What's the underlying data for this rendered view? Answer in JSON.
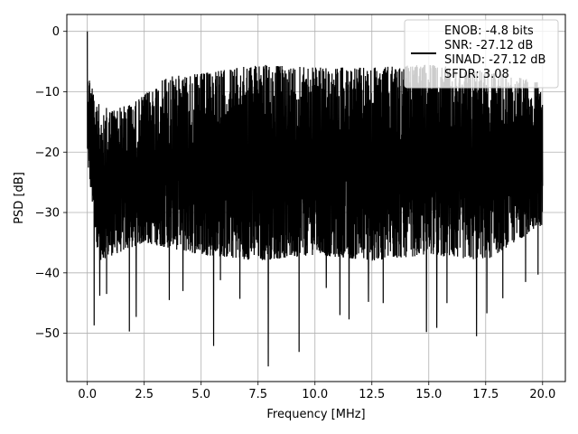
{
  "chart_data": {
    "type": "line",
    "xlabel": "Frequency [MHz]",
    "ylabel": "PSD [dB]",
    "xlim": [
      -0.9,
      21.0
    ],
    "ylim": [
      -58.0,
      2.8
    ],
    "xticks": [
      0.0,
      2.5,
      5.0,
      7.5,
      10.0,
      12.5,
      15.0,
      17.5,
      20.0
    ],
    "xtick_labels": [
      "0.0",
      "2.5",
      "5.0",
      "7.5",
      "10.0",
      "12.5",
      "15.0",
      "17.5",
      "20.0"
    ],
    "yticks": [
      0,
      -10,
      -20,
      -30,
      -40,
      -50
    ],
    "ytick_labels": [
      "0",
      "−10",
      "−20",
      "−30",
      "−40",
      "−50"
    ],
    "grid": true,
    "legend_location": "upper right",
    "legend": {
      "lines": [
        "ENOB: -4.8 bits",
        "SNR: -27.12 dB",
        "SINAD: -27.12 dB",
        "SFDR: 3.08"
      ]
    },
    "series": [
      {
        "color": "#000000",
        "x_start": 0.0,
        "x_end": 20.0,
        "peak": {
          "x": 0.0,
          "y": 0.0
        },
        "envelope_upper": [
          {
            "x": 0.05,
            "y": -7
          },
          {
            "x": 0.5,
            "y": -12
          },
          {
            "x": 1.0,
            "y": -13
          },
          {
            "x": 2.0,
            "y": -12
          },
          {
            "x": 3.5,
            "y": -7.5
          },
          {
            "x": 5.0,
            "y": -7
          },
          {
            "x": 7.5,
            "y": -5.5
          },
          {
            "x": 10.0,
            "y": -6
          },
          {
            "x": 12.5,
            "y": -6
          },
          {
            "x": 15.0,
            "y": -5.5
          },
          {
            "x": 17.5,
            "y": -6.5
          },
          {
            "x": 20.0,
            "y": -8.5
          }
        ],
        "envelope_lower": [
          {
            "x": 0.05,
            "y": -23
          },
          {
            "x": 0.5,
            "y": -38
          },
          {
            "x": 2.5,
            "y": -35
          },
          {
            "x": 5.0,
            "y": -37
          },
          {
            "x": 7.5,
            "y": -38
          },
          {
            "x": 10.0,
            "y": -37
          },
          {
            "x": 12.5,
            "y": -38
          },
          {
            "x": 15.0,
            "y": -37
          },
          {
            "x": 17.5,
            "y": -38
          },
          {
            "x": 20.0,
            "y": -32
          }
        ],
        "dips": [
          {
            "x": 0.3,
            "y": -48.7
          },
          {
            "x": 0.55,
            "y": -43.8
          },
          {
            "x": 0.85,
            "y": -43.5
          },
          {
            "x": 1.85,
            "y": -49.7
          },
          {
            "x": 2.15,
            "y": -47.3
          },
          {
            "x": 3.6,
            "y": -44.5
          },
          {
            "x": 4.2,
            "y": -43
          },
          {
            "x": 5.55,
            "y": -52.1
          },
          {
            "x": 5.85,
            "y": -41.2
          },
          {
            "x": 6.7,
            "y": -44.3
          },
          {
            "x": 7.95,
            "y": -55.5
          },
          {
            "x": 9.3,
            "y": -53.1
          },
          {
            "x": 10.5,
            "y": -42.5
          },
          {
            "x": 11.1,
            "y": -47.0
          },
          {
            "x": 11.5,
            "y": -47.7
          },
          {
            "x": 12.35,
            "y": -44.8
          },
          {
            "x": 13.0,
            "y": -45.0
          },
          {
            "x": 14.9,
            "y": -49.8
          },
          {
            "x": 15.35,
            "y": -49.1
          },
          {
            "x": 15.8,
            "y": -45.0
          },
          {
            "x": 17.1,
            "y": -50.5
          },
          {
            "x": 17.55,
            "y": -46.7
          },
          {
            "x": 18.25,
            "y": -44.2
          },
          {
            "x": 19.25,
            "y": -41.5
          },
          {
            "x": 19.8,
            "y": -40.3
          }
        ]
      }
    ]
  }
}
